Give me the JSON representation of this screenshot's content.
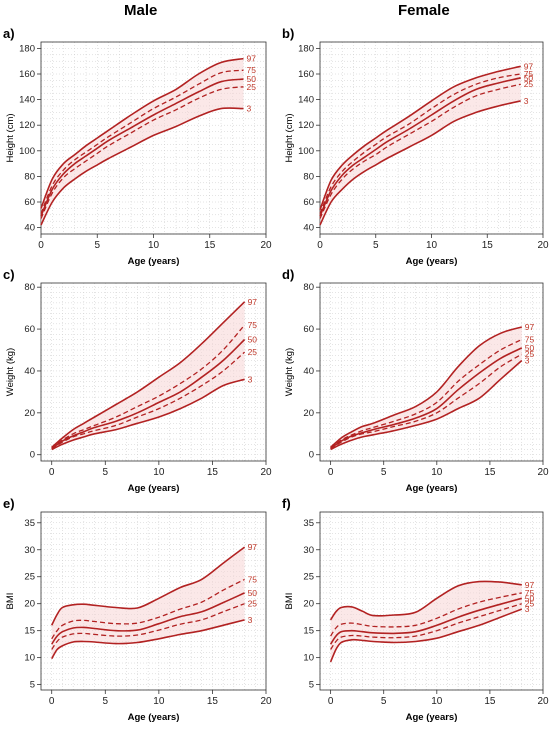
{
  "column_titles": {
    "left": "Male",
    "right": "Female"
  },
  "colors": {
    "curve": "#b22222",
    "band": "#f7d6d6",
    "grid": "#c8c8c8",
    "axis": "#333333",
    "label": "#c0392b"
  },
  "chart_data": [
    {
      "id": "a",
      "panel_label": "a)",
      "type": "line",
      "xlabel": "Age (years)",
      "ylabel": "Height (cm)",
      "xlim": [
        0,
        20
      ],
      "ylim": [
        35,
        185
      ],
      "xticks": [
        0,
        5,
        10,
        15,
        20
      ],
      "yticks": [
        40,
        60,
        80,
        100,
        120,
        140,
        160,
        180
      ],
      "grid": true,
      "x": [
        0,
        1,
        2,
        3,
        4,
        5,
        6,
        8,
        10,
        12,
        14,
        16,
        18
      ],
      "series": [
        {
          "name": "97",
          "dashed": false,
          "values": [
            55,
            78,
            90,
            97,
            104,
            110,
            116,
            128,
            139,
            148,
            160,
            169,
            172
          ]
        },
        {
          "name": "75",
          "dashed": true,
          "values": [
            51,
            73,
            85,
            93,
            99,
            105,
            111,
            122,
            133,
            142,
            152,
            161,
            163
          ]
        },
        {
          "name": "50",
          "dashed": false,
          "values": [
            49,
            70,
            82,
            90,
            96,
            102,
            108,
            118,
            128,
            137,
            146,
            154,
            156
          ]
        },
        {
          "name": "25",
          "dashed": true,
          "values": [
            47,
            67,
            79,
            86,
            92,
            98,
            104,
            114,
            124,
            132,
            141,
            148,
            150
          ]
        },
        {
          "name": "3",
          "dashed": false,
          "values": [
            42,
            60,
            71,
            78,
            84,
            89,
            94,
            103,
            112,
            119,
            127,
            133,
            133
          ]
        }
      ]
    },
    {
      "id": "b",
      "panel_label": "b)",
      "type": "line",
      "xlabel": "Age (years)",
      "ylabel": "Height (cm)",
      "xlim": [
        0,
        20
      ],
      "ylim": [
        35,
        185
      ],
      "xticks": [
        0,
        5,
        10,
        15,
        20
      ],
      "yticks": [
        40,
        60,
        80,
        100,
        120,
        140,
        160,
        180
      ],
      "grid": true,
      "x": [
        0,
        1,
        2,
        3,
        4,
        5,
        6,
        8,
        10,
        12,
        14,
        16,
        18
      ],
      "series": [
        {
          "name": "97",
          "dashed": false,
          "values": [
            54,
            77,
            89,
            97,
            104,
            110,
            116,
            127,
            139,
            150,
            157,
            162,
            166
          ]
        },
        {
          "name": "75",
          "dashed": true,
          "values": [
            51,
            72,
            84,
            92,
            99,
            105,
            111,
            121,
            133,
            144,
            152,
            157,
            160
          ]
        },
        {
          "name": "50",
          "dashed": false,
          "values": [
            49,
            69,
            81,
            89,
            95,
            101,
            107,
            117,
            128,
            139,
            148,
            153,
            157
          ]
        },
        {
          "name": "25",
          "dashed": true,
          "values": [
            47,
            66,
            78,
            86,
            92,
            97,
            103,
            113,
            123,
            134,
            143,
            148,
            152
          ]
        },
        {
          "name": "3",
          "dashed": false,
          "values": [
            42,
            60,
            70,
            78,
            84,
            89,
            94,
            103,
            112,
            123,
            130,
            135,
            139
          ]
        }
      ]
    },
    {
      "id": "c",
      "panel_label": "c)",
      "type": "line",
      "xlabel": "Age (years)",
      "ylabel": "Weight (kg)",
      "xlim": [
        -1,
        20
      ],
      "ylim": [
        -3,
        82
      ],
      "xticks": [
        0,
        5,
        10,
        15,
        20
      ],
      "yticks": [
        0,
        20,
        40,
        60,
        80
      ],
      "grid": true,
      "x": [
        0,
        1,
        2,
        3,
        4,
        6,
        8,
        10,
        12,
        14,
        16,
        18
      ],
      "series": [
        {
          "name": "97",
          "dashed": false,
          "values": [
            3.5,
            8,
            12,
            15,
            18,
            24,
            30,
            37,
            44,
            53,
            63,
            73
          ]
        },
        {
          "name": "75",
          "dashed": true,
          "values": [
            3.2,
            7,
            10,
            12,
            14,
            18,
            23,
            28,
            34,
            41,
            50,
            62
          ]
        },
        {
          "name": "50",
          "dashed": false,
          "values": [
            3.0,
            6.5,
            9,
            11,
            13,
            16,
            20,
            25,
            30,
            37,
            45,
            55
          ]
        },
        {
          "name": "25",
          "dashed": true,
          "values": [
            2.8,
            6,
            8.5,
            10,
            11.5,
            14,
            18,
            22,
            27,
            33,
            40,
            49
          ]
        },
        {
          "name": "3",
          "dashed": false,
          "values": [
            2.5,
            5,
            7,
            8.5,
            10,
            12,
            15,
            18,
            22,
            27,
            33,
            36
          ]
        }
      ]
    },
    {
      "id": "d",
      "panel_label": "d)",
      "type": "line",
      "xlabel": "Age (years)",
      "ylabel": "Weight (kg)",
      "xlim": [
        -1,
        20
      ],
      "ylim": [
        -3,
        82
      ],
      "xticks": [
        0,
        5,
        10,
        15,
        20
      ],
      "yticks": [
        0,
        20,
        40,
        60,
        80
      ],
      "grid": true,
      "x": [
        0,
        1,
        2,
        3,
        4,
        6,
        8,
        10,
        12,
        14,
        16,
        18
      ],
      "series": [
        {
          "name": "97",
          "dashed": false,
          "values": [
            3.5,
            8,
            11,
            13.5,
            15,
            19,
            23,
            30,
            42,
            52,
            58,
            61
          ]
        },
        {
          "name": "75",
          "dashed": true,
          "values": [
            3.2,
            7,
            9.5,
            11.5,
            13,
            16,
            19.5,
            25,
            35,
            43,
            50,
            55
          ]
        },
        {
          "name": "50",
          "dashed": false,
          "values": [
            3.0,
            6.5,
            9,
            10.5,
            12,
            14.5,
            17.5,
            22,
            31,
            39,
            46,
            51
          ]
        },
        {
          "name": "25",
          "dashed": true,
          "values": [
            2.8,
            6,
            8.5,
            10,
            11,
            13.5,
            16,
            20,
            27,
            34,
            42,
            48
          ]
        },
        {
          "name": "3",
          "dashed": false,
          "values": [
            2.5,
            5,
            7,
            8.5,
            9.5,
            11.5,
            14,
            17,
            22,
            27,
            36,
            45
          ]
        }
      ]
    },
    {
      "id": "e",
      "panel_label": "e)",
      "type": "line",
      "xlabel": "Age (years)",
      "ylabel": "BMI",
      "xlim": [
        -1,
        20
      ],
      "ylim": [
        4,
        37
      ],
      "xticks": [
        0,
        5,
        10,
        15,
        20
      ],
      "yticks": [
        5,
        10,
        15,
        20,
        25,
        30,
        35
      ],
      "grid": true,
      "x": [
        0,
        0.5,
        1,
        2,
        3,
        4,
        6,
        8,
        10,
        12,
        14,
        16,
        18
      ],
      "series": [
        {
          "name": "97",
          "dashed": false,
          "values": [
            16,
            18,
            19.3,
            19.8,
            19.9,
            19.7,
            19.3,
            19.2,
            21,
            23,
            24.5,
            27.5,
            30.5
          ]
        },
        {
          "name": "75",
          "dashed": true,
          "values": [
            13.5,
            15,
            16,
            16.8,
            16.9,
            16.7,
            16.3,
            16.4,
            17.5,
            19,
            20.3,
            22.5,
            24.5
          ]
        },
        {
          "name": "50",
          "dashed": false,
          "values": [
            12.5,
            14,
            14.8,
            15.5,
            15.6,
            15.4,
            15.0,
            15.1,
            16.3,
            17.6,
            18.5,
            20.2,
            22
          ]
        },
        {
          "name": "25",
          "dashed": true,
          "values": [
            11.5,
            13,
            13.8,
            14.4,
            14.5,
            14.3,
            14.0,
            14.2,
            15.1,
            16.2,
            17.0,
            18.5,
            20
          ]
        },
        {
          "name": "3",
          "dashed": false,
          "values": [
            9.8,
            11.5,
            12.2,
            12.9,
            13.0,
            12.9,
            12.6,
            12.8,
            13.5,
            14.3,
            15.0,
            16.0,
            17
          ]
        }
      ]
    },
    {
      "id": "f",
      "panel_label": "f)",
      "type": "line",
      "xlabel": "Age (years)",
      "ylabel": "BMI",
      "xlim": [
        -1,
        20
      ],
      "ylim": [
        4,
        37
      ],
      "xticks": [
        0,
        5,
        10,
        15,
        20
      ],
      "yticks": [
        5,
        10,
        15,
        20,
        25,
        30,
        35
      ],
      "grid": true,
      "x": [
        0,
        0.5,
        1,
        2,
        3,
        4,
        6,
        8,
        10,
        12,
        14,
        16,
        18
      ],
      "series": [
        {
          "name": "97",
          "dashed": false,
          "values": [
            17,
            18.5,
            19.3,
            19.4,
            18.6,
            17.8,
            17.9,
            18.4,
            21,
            23.3,
            24.1,
            24.0,
            23.5
          ]
        },
        {
          "name": "75",
          "dashed": true,
          "values": [
            14,
            15.5,
            16.2,
            16.4,
            16.1,
            15.8,
            15.7,
            16.0,
            17.3,
            19.0,
            20.3,
            21.2,
            22
          ]
        },
        {
          "name": "50",
          "dashed": false,
          "values": [
            12.5,
            14,
            14.8,
            15.0,
            14.8,
            14.6,
            14.5,
            14.8,
            16.0,
            17.5,
            18.8,
            19.9,
            21
          ]
        },
        {
          "name": "25",
          "dashed": true,
          "values": [
            11.5,
            13,
            13.8,
            14.1,
            14.0,
            13.8,
            13.7,
            14.0,
            15.0,
            16.4,
            17.6,
            18.8,
            20
          ]
        },
        {
          "name": "3",
          "dashed": false,
          "values": [
            9.2,
            11.5,
            12.8,
            13.3,
            13.2,
            13.0,
            12.8,
            13.0,
            13.6,
            14.8,
            16.0,
            17.5,
            19
          ]
        }
      ]
    }
  ]
}
